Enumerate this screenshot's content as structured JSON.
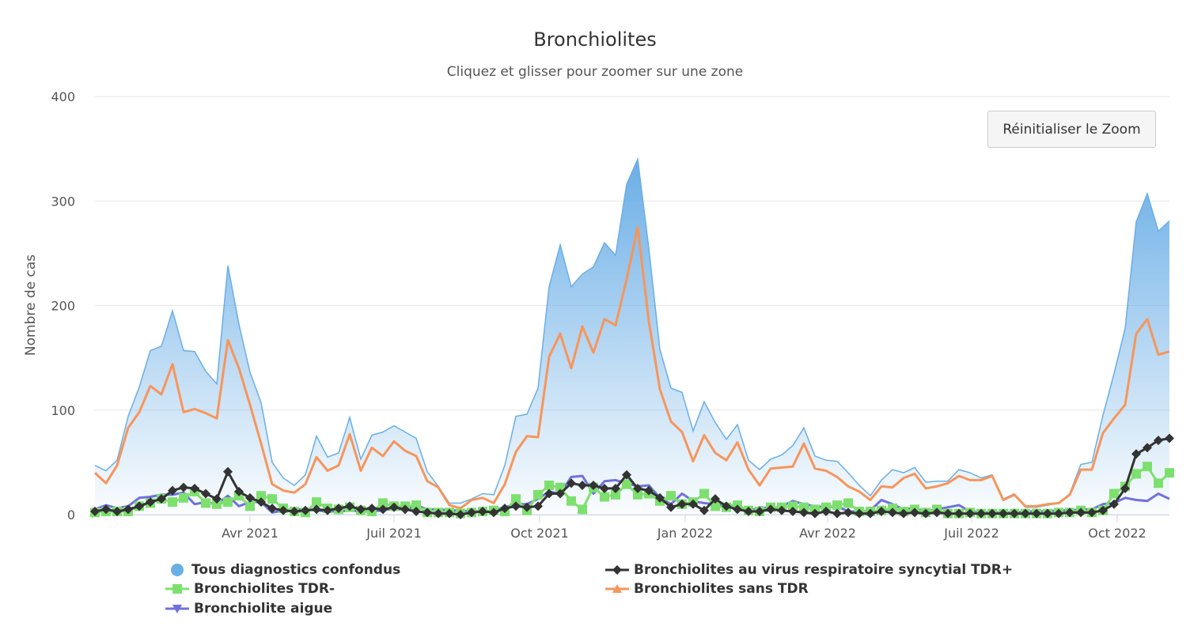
{
  "chart_data": {
    "type": "line",
    "title": "Bronchiolites",
    "subtitle": "Cliquez et glisser pour zoomer sur une zone",
    "ylabel": "Nombre de cas",
    "xlabel": "",
    "ylim": [
      0,
      400
    ],
    "yticks": [
      "0",
      "100",
      "200",
      "300",
      "400"
    ],
    "xticks": [
      {
        "date": "2021-04-01",
        "label": "Avr 2021"
      },
      {
        "date": "2021-07-01",
        "label": "Juil 2021"
      },
      {
        "date": "2021-10-01",
        "label": "Oct 2021"
      },
      {
        "date": "2022-01-01",
        "label": "Jan 2022"
      },
      {
        "date": "2022-04-01",
        "label": "Avr 2022"
      },
      {
        "date": "2022-07-01",
        "label": "Juil 2022"
      },
      {
        "date": "2022-10-01",
        "label": "Oct 2022"
      }
    ],
    "x_start": "2020-12-24",
    "x_step_days": 7,
    "grid": true,
    "legend_position": "bottom",
    "reset_zoom_label": "Réinitialiser le Zoom",
    "series": [
      {
        "name": "Tous diagnostics confondus",
        "color": "#6aaee6",
        "kind": "area",
        "marker": "circle",
        "values": [
          47,
          42,
          52,
          94,
          122,
          157,
          161,
          195,
          157,
          156,
          137,
          125,
          238,
          182,
          136,
          107,
          50,
          35,
          28,
          38,
          75,
          55,
          59,
          93,
          53,
          76,
          79,
          85,
          79,
          73,
          41,
          27,
          11,
          11,
          15,
          20,
          19,
          47,
          94,
          96,
          121,
          218,
          258,
          218,
          230,
          237,
          260,
          248,
          316,
          340,
          255,
          158,
          121,
          117,
          80,
          108,
          88,
          72,
          86,
          52,
          43,
          53,
          57,
          66,
          83,
          56,
          52,
          51,
          40,
          28,
          18,
          33,
          43,
          40,
          45,
          31,
          32,
          32,
          43,
          40,
          35,
          38,
          15,
          20,
          7,
          7,
          9,
          11,
          20,
          48,
          50,
          95,
          135,
          178,
          280,
          307,
          271,
          281
        ]
      },
      {
        "name": "Bronchiolites au virus respiratoire syncytial TDR+",
        "color": "#333333",
        "kind": "line",
        "marker": "diamond",
        "values": [
          3,
          5,
          3,
          5,
          8,
          12,
          15,
          23,
          26,
          25,
          20,
          15,
          41,
          22,
          16,
          12,
          6,
          4,
          3,
          4,
          5,
          4,
          6,
          8,
          5,
          6,
          5,
          7,
          5,
          3,
          2,
          1,
          1,
          0,
          2,
          3,
          2,
          6,
          8,
          7,
          8,
          20,
          20,
          30,
          28,
          28,
          25,
          25,
          38,
          25,
          23,
          16,
          7,
          10,
          10,
          4,
          15,
          8,
          5,
          3,
          3,
          5,
          4,
          3,
          2,
          1,
          3,
          1,
          2,
          1,
          1,
          3,
          2,
          1,
          2,
          1,
          2,
          1,
          1,
          1,
          1,
          1,
          1,
          1,
          1,
          1,
          1,
          1,
          2,
          2,
          2,
          4,
          10,
          25,
          58,
          64,
          71,
          73
        ]
      },
      {
        "name": "Bronchiolites TDR-",
        "color": "#7de06e",
        "kind": "line",
        "marker": "square",
        "values": [
          2,
          3,
          3,
          3,
          8,
          11,
          15,
          12,
          16,
          22,
          11,
          10,
          12,
          18,
          8,
          18,
          15,
          6,
          3,
          2,
          12,
          6,
          5,
          7,
          4,
          3,
          11,
          8,
          8,
          9,
          2,
          2,
          2,
          1,
          2,
          3,
          4,
          3,
          15,
          4,
          19,
          28,
          26,
          13,
          5,
          26,
          17,
          19,
          29,
          19,
          20,
          13,
          18,
          10,
          12,
          20,
          8,
          7,
          9,
          4,
          3,
          7,
          7,
          8,
          7,
          5,
          7,
          9,
          11,
          3,
          3,
          4,
          6,
          3,
          5,
          2,
          5,
          1,
          1,
          2,
          1,
          1,
          1,
          1,
          1,
          1,
          1,
          2,
          2,
          4,
          2,
          4,
          20,
          27,
          39,
          46,
          30,
          40
        ]
      },
      {
        "name": "Bronchiolites sans TDR",
        "color": "#f7955a",
        "kind": "line",
        "marker": "triangle",
        "values": [
          40,
          30,
          47,
          83,
          98,
          123,
          115,
          144,
          98,
          101,
          97,
          92,
          167,
          140,
          105,
          68,
          29,
          23,
          21,
          29,
          55,
          42,
          47,
          77,
          42,
          64,
          56,
          70,
          61,
          56,
          32,
          26,
          9,
          6,
          14,
          16,
          11,
          29,
          60,
          75,
          74,
          151,
          173,
          140,
          180,
          155,
          187,
          181,
          225,
          275,
          185,
          120,
          89,
          79,
          51,
          76,
          59,
          52,
          69,
          43,
          28,
          44,
          45,
          46,
          68,
          44,
          42,
          36,
          27,
          22,
          14,
          27,
          26,
          35,
          39,
          25,
          27,
          30,
          37,
          33,
          33,
          37,
          14,
          19,
          8,
          8,
          10,
          11,
          19,
          43,
          43,
          78,
          92,
          105,
          173,
          187,
          153,
          156
        ]
      },
      {
        "name": "Bronchiolite aigue",
        "color": "#7070e0",
        "kind": "line",
        "marker": "triangle-down",
        "values": [
          5,
          9,
          6,
          8,
          16,
          17,
          19,
          19,
          21,
          10,
          12,
          10,
          18,
          8,
          12,
          12,
          2,
          4,
          5,
          5,
          4,
          3,
          3,
          4,
          3,
          3,
          4,
          6,
          4,
          9,
          5,
          5,
          4,
          4,
          3,
          3,
          4,
          7,
          10,
          10,
          15,
          22,
          20,
          36,
          37,
          20,
          32,
          33,
          30,
          27,
          28,
          16,
          10,
          20,
          13,
          11,
          10,
          9,
          8,
          3,
          7,
          6,
          8,
          13,
          10,
          8,
          7,
          8,
          3,
          3,
          4,
          14,
          10,
          5,
          6,
          3,
          5,
          7,
          9,
          3,
          2,
          2,
          2,
          2,
          3,
          3,
          3,
          4,
          4,
          5,
          5,
          10,
          11,
          16,
          14,
          13,
          20,
          15
        ]
      }
    ]
  }
}
